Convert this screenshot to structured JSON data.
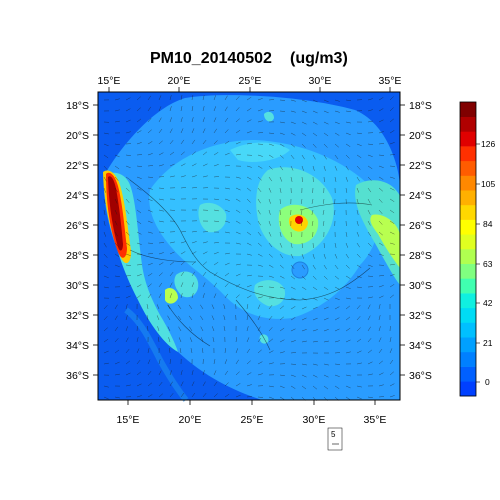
{
  "title": "PM10_20140502",
  "units": "(ug/m3)",
  "x_ticks": [
    "15°E",
    "20°E",
    "25°E",
    "30°E",
    "35°E"
  ],
  "y_ticks": [
    "18°S",
    "20°S",
    "22°S",
    "24°S",
    "26°S",
    "28°S",
    "30°S",
    "32°S",
    "34°S",
    "36°S"
  ],
  "colorbar": {
    "labels": [
      "0",
      "21",
      "42",
      "63",
      "84",
      "105",
      "126"
    ],
    "colors": [
      "#0040ff",
      "#0060ff",
      "#0080ff",
      "#00a0ff",
      "#00c0ff",
      "#00dcf5",
      "#10f0e0",
      "#40ffb0",
      "#80ff80",
      "#b0ff50",
      "#e0ff20",
      "#ffff00",
      "#ffd800",
      "#ffb000",
      "#ff8800",
      "#ff5c00",
      "#ff3000",
      "#e00000",
      "#b00000",
      "#800000"
    ]
  },
  "vector_reference": {
    "label": "5"
  },
  "colors": {
    "background": "#0a5cf0",
    "land": "#29a6ff",
    "plateau": "#3ec8ff",
    "hotspot": "#a00000"
  }
}
